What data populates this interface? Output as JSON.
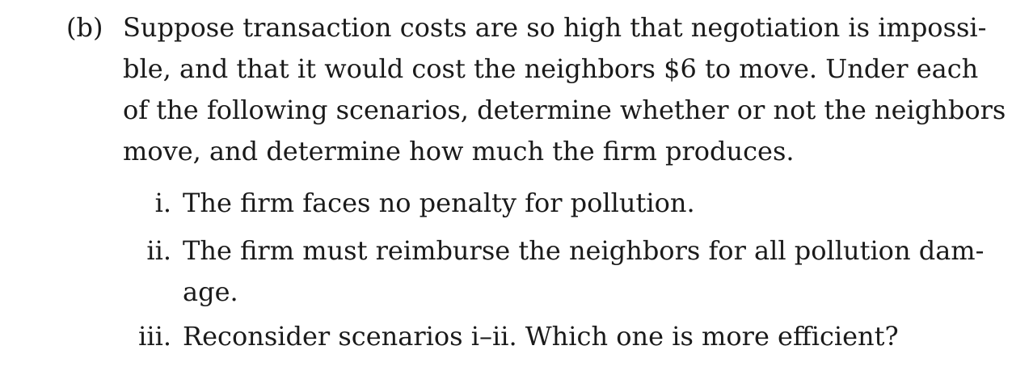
{
  "problem": {
    "part_label": "(b)",
    "lines": [
      "Suppose transaction costs are so high that negotiation is impossi-",
      "ble, and that it would cost the neighbors $6 to move. Under each",
      "of the following scenarios, determine whether or not the neighbors",
      "move, and determine how much the firm produces."
    ]
  },
  "items": [
    {
      "label": "i.",
      "lines": [
        "The firm faces no penalty for pollution."
      ]
    },
    {
      "label": "ii.",
      "lines": [
        "The firm must reimburse the neighbors for all pollution dam-",
        "age."
      ]
    },
    {
      "label": "iii.",
      "lines": [
        "Reconsider scenarios i–ii. Which one is more efficient?"
      ]
    }
  ]
}
